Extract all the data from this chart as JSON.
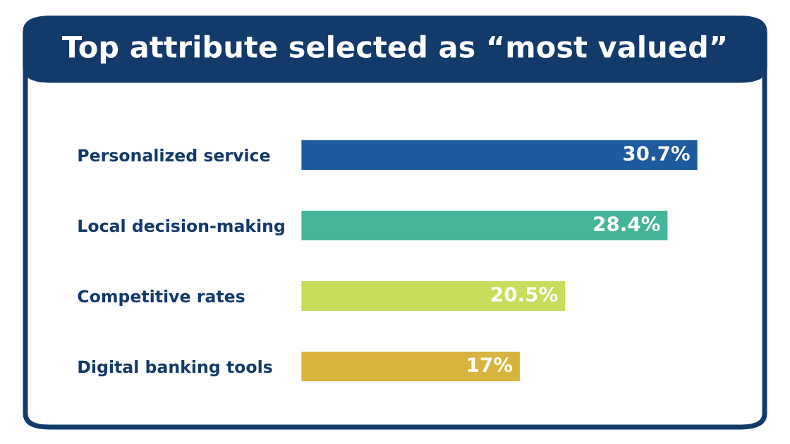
{
  "chart_data": {
    "type": "bar",
    "orientation": "horizontal",
    "title": "Top attribute selected as “most valued”",
    "categories": [
      "Personalized service",
      "Local decision-making",
      "Competitive rates",
      "Digital banking tools"
    ],
    "values": [
      30.7,
      28.4,
      20.5,
      17
    ],
    "colors": [
      "#1d5a9e",
      "#45b59a",
      "#c9dc5c",
      "#d8b43e"
    ],
    "data_labels": true,
    "value_labels": [
      "30.7%",
      "28.4%",
      "20.5%",
      "17%"
    ],
    "tick_labels": "y",
    "grid": false,
    "legend": false
  }
}
